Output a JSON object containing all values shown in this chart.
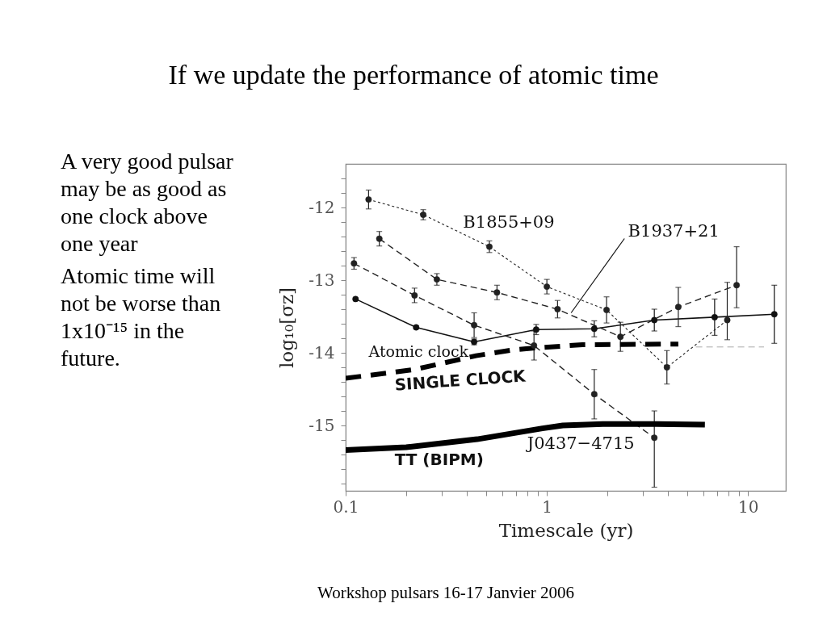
{
  "chart_data": {
    "type": "line",
    "title": "If we update the performance of atomic time",
    "xlabel": "Timescale (yr)",
    "ylabel": "log₁₀[σz]",
    "log": "x",
    "xlim": [
      0.1,
      15.4
    ],
    "ylim": [
      -15.9,
      -11.4
    ],
    "xticks": [
      0.1,
      {
        "value": 0.2,
        "label": null
      },
      {
        "value": 0.3,
        "label": null
      },
      {
        "value": 0.4,
        "label": null
      },
      {
        "value": 0.5,
        "label": null
      },
      {
        "value": 0.6,
        "label": null
      },
      {
        "value": 0.7,
        "label": null
      },
      {
        "value": 0.8,
        "label": null
      },
      {
        "value": 0.9,
        "label": null
      },
      1,
      {
        "value": 2,
        "label": null
      },
      {
        "value": 3,
        "label": null
      },
      {
        "value": 4,
        "label": null
      },
      {
        "value": 5,
        "label": null
      },
      {
        "value": 6,
        "label": null
      },
      {
        "value": 7,
        "label": null
      },
      {
        "value": 8,
        "label": null
      },
      {
        "value": 9,
        "label": null
      },
      10
    ],
    "yticks": [
      {
        "value": -15.8,
        "label": null
      },
      {
        "value": -15.6,
        "label": null
      },
      {
        "value": -15.4,
        "label": null
      },
      {
        "value": -15.2,
        "label": null
      },
      -15,
      {
        "value": -14.8,
        "label": null
      },
      {
        "value": -14.6,
        "label": null
      },
      {
        "value": -14.4,
        "label": null
      },
      {
        "value": -14.2,
        "label": null
      },
      -14,
      {
        "value": -13.8,
        "label": null
      },
      {
        "value": -13.6,
        "label": null
      },
      {
        "value": -13.4,
        "label": null
      },
      {
        "value": -13.2,
        "label": null
      },
      -13,
      {
        "value": -12.8,
        "label": null
      },
      {
        "value": -12.6,
        "label": null
      },
      {
        "value": -12.4,
        "label": null
      },
      {
        "value": -12.2,
        "label": null
      },
      -12,
      {
        "value": -11.8,
        "label": null
      },
      {
        "value": -11.6,
        "label": null
      }
    ],
    "series": [
      {
        "type": "line",
        "color": "#111111",
        "line_style": "solid",
        "marker": "circle",
        "x": [
          0.112,
          0.224,
          0.435,
          0.885,
          1.72,
          3.42,
          6.82,
          13.5
        ],
        "values": [
          -13.26,
          -13.65,
          -13.85,
          -13.68,
          -13.67,
          -13.55,
          -13.51,
          -13.47
        ],
        "errors": [
          null,
          0.02,
          0.04,
          0.07,
          0.11,
          0.15,
          0.25,
          0.4
        ]
      },
      {
        "type": "line",
        "color": "#222222",
        "line_style": "dotted",
        "marker": "circle",
        "x": [
          0.13,
          0.243,
          0.518,
          1.0,
          1.98,
          3.95,
          7.88
        ],
        "values": [
          -11.89,
          -12.1,
          -12.54,
          -13.09,
          -13.41,
          -14.2,
          -13.55
        ],
        "errors": [
          0.13,
          0.07,
          0.08,
          0.1,
          0.18,
          0.23,
          [
            -13.82,
            -13.03
          ]
        ]
      },
      {
        "type": "line",
        "color": "#222222",
        "line_style": "dashed",
        "marker": "circle",
        "x": [
          0.147,
          0.284,
          0.565,
          1.13,
          2.32,
          4.5,
          8.77
        ],
        "values": [
          -12.43,
          -12.99,
          -13.17,
          -13.4,
          -13.78,
          -13.37,
          -13.07
        ],
        "errors": [
          0.1,
          0.08,
          0.1,
          0.12,
          0.2,
          0.27,
          [
            -13.38,
            -12.54
          ]
        ]
      },
      {
        "type": "line",
        "color": "#222222",
        "line_style": "dashed",
        "marker": "circle",
        "x": [
          0.11,
          0.22,
          0.435,
          0.863,
          1.72,
          3.42
        ],
        "values": [
          -12.77,
          -13.21,
          -13.62,
          -13.9,
          -14.57,
          -15.17
        ],
        "errors": [
          0.08,
          0.1,
          0.17,
          0.2,
          0.34,
          [
            -15.85,
            -14.8
          ]
        ]
      },
      {
        "type": "line",
        "color": "#aaaaaa",
        "line_style": "dashed",
        "marker": "none",
        "x": [
          5.5,
          12
        ],
        "values": [
          -13.92,
          -13.92
        ]
      },
      {
        "type": "line",
        "color": "#000000",
        "line_style": "dashed",
        "marker": "none",
        "x": [
          0.1,
          0.16,
          0.22,
          0.445,
          0.68,
          0.9,
          1.5,
          4.5
        ],
        "values": [
          -14.35,
          -14.28,
          -14.23,
          -14.04,
          -13.96,
          -13.93,
          -13.89,
          -13.88
        ]
      },
      {
        "type": "line",
        "color": "#000000",
        "line_style": "solid",
        "marker": "none",
        "x": [
          0.1,
          0.2,
          0.45,
          0.95,
          1.2,
          1.9,
          3.5,
          6.1
        ],
        "values": [
          -15.34,
          -15.3,
          -15.19,
          -15.04,
          -15.0,
          -14.98,
          -14.98,
          -14.99
        ]
      }
    ],
    "annotations": [
      "A very good pulsar may be as good as one clock above one year",
      "Atomic time will not be worse than 1x10⁻¹⁵ in the future.",
      {
        "text": "B1855+09",
        "x": 0.518,
        "y": -12.54
      },
      {
        "text": "B1937+21",
        "x": 1.32,
        "y": -13.45
      },
      {
        "text": "J0437−4715",
        "x": 3.42,
        "y": -15.17
      },
      {
        "text": "Atomic clock",
        "x": 0.22,
        "y": -14.23
      },
      {
        "text": "SINGLE CLOCK",
        "x": 0.445,
        "y": -14.04
      },
      {
        "text": "TT (BIPM)",
        "x": 0.45,
        "y": -15.19
      },
      "Workshop pulsars 16-17 Janvier 2006"
    ]
  }
}
